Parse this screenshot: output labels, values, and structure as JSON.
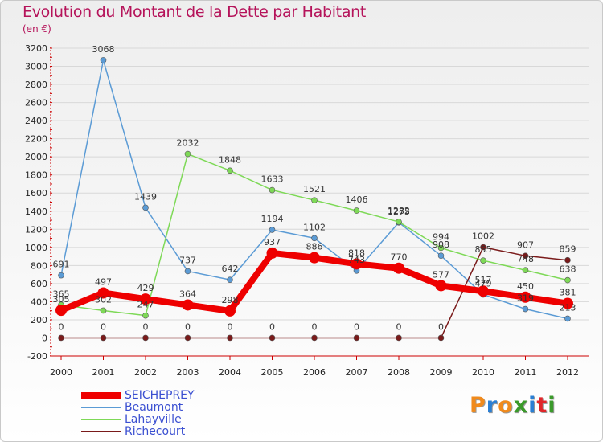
{
  "title": "Evolution du Montant de la Dette par Habitant",
  "unit_label": "(en €)",
  "logo": {
    "letters": [
      "P",
      "r",
      "o",
      "x",
      "i",
      "t",
      "i"
    ],
    "colors": [
      "#f08a1c",
      "#2a7fd4",
      "#f08a1c",
      "#3a9a2a",
      "#2a7fd4",
      "#e0262a",
      "#3a9a2a"
    ]
  },
  "colors": {
    "title": "#b5135a",
    "axis": "#cc0000",
    "grid": "#d8d8d8",
    "legend_text": "#3a4fd1"
  },
  "chart_data": {
    "type": "line",
    "x": [
      "2000",
      "2001",
      "2002",
      "2003",
      "2004",
      "2005",
      "2006",
      "2007",
      "2008",
      "2009",
      "2010",
      "2011",
      "2012"
    ],
    "ylim": [
      -200,
      3200
    ],
    "yticks": [
      -200,
      0,
      200,
      400,
      600,
      800,
      1000,
      1200,
      1400,
      1600,
      1800,
      2000,
      2200,
      2400,
      2600,
      2800,
      3000,
      3200
    ],
    "grid": true,
    "legend_position": "bottom-left",
    "series": [
      {
        "name": "SEICHEPREY",
        "color": "#ee0000",
        "width": 8,
        "marker_r": 7,
        "values": [
          305,
          497,
          429,
          364,
          298,
          937,
          886,
          818,
          770,
          577,
          517,
          450,
          381
        ],
        "labels": [
          "305",
          "497",
          "429",
          "364",
          "298",
          "937",
          "886",
          "818",
          "770",
          "577",
          "517",
          "450",
          "381"
        ]
      },
      {
        "name": "Beaumont",
        "color": "#5b9bd5",
        "width": 1.5,
        "marker_r": 3.5,
        "values": [
          691,
          3068,
          1439,
          737,
          642,
          1194,
          1102,
          743,
          1275,
          908,
          479,
          319,
          213
        ],
        "labels": [
          "691",
          "3068",
          "1439",
          "737",
          "642",
          "1194",
          "1102",
          "743",
          "1275",
          "908",
          "479",
          "319",
          "213"
        ]
      },
      {
        "name": "Lahayville",
        "color": "#7ed957",
        "width": 1.5,
        "marker_r": 3.5,
        "values": [
          365,
          302,
          247,
          2032,
          1848,
          1633,
          1521,
          1406,
          1282,
          994,
          855,
          748,
          638
        ],
        "labels": [
          "365",
          "302",
          "247",
          "2032",
          "1848",
          "1633",
          "1521",
          "1406",
          "1282",
          "994",
          "855",
          "748",
          "638"
        ]
      },
      {
        "name": "Richecourt",
        "color": "#7a1a1a",
        "width": 1.5,
        "marker_r": 3.5,
        "values": [
          0,
          0,
          0,
          0,
          0,
          0,
          0,
          0,
          0,
          0,
          1002,
          907,
          859
        ],
        "labels": [
          "0",
          "0",
          "0",
          "0",
          "0",
          "0",
          "0",
          "0",
          "0",
          "0",
          "1002",
          "907",
          "859"
        ]
      }
    ]
  }
}
